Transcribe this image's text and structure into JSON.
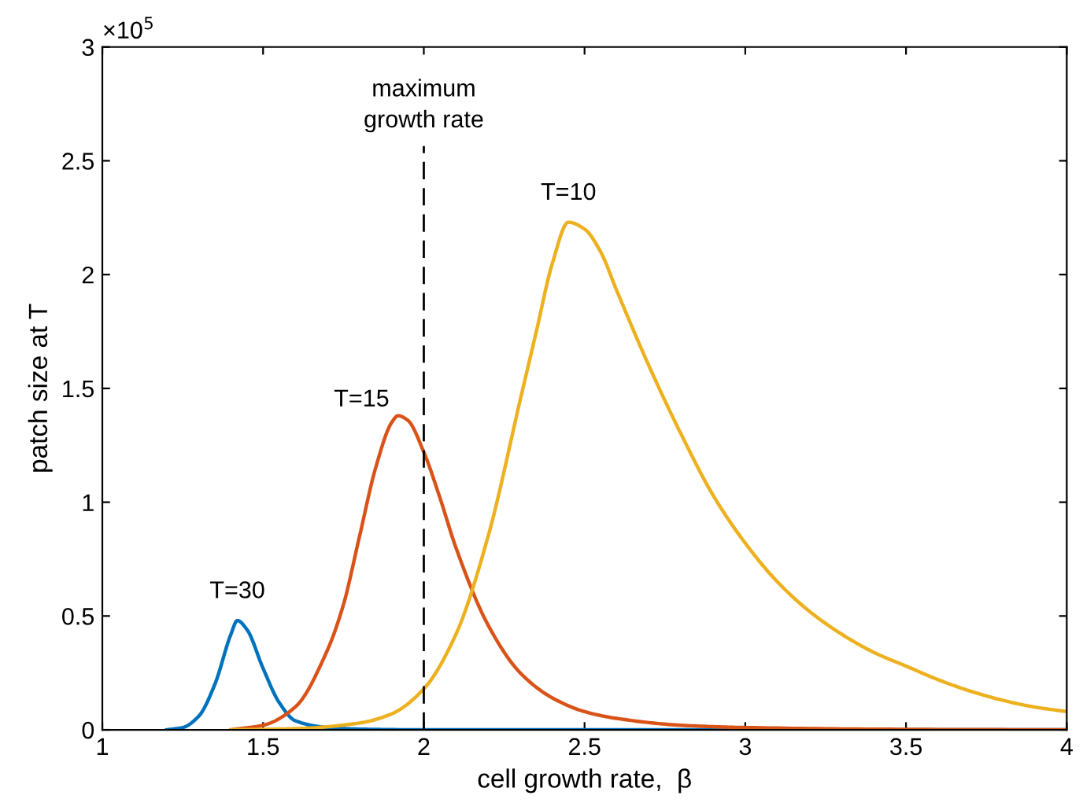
{
  "chart_data": {
    "type": "line",
    "xlabel": "cell growth rate,  β",
    "ylabel": "patch size at T",
    "xlim": [
      1,
      4
    ],
    "xticks": [
      1,
      1.5,
      2,
      2.5,
      3,
      3.5,
      4
    ],
    "ylim": [
      0,
      3
    ],
    "yticks": [
      0,
      0.5,
      1,
      1.5,
      2,
      2.5,
      3
    ],
    "grid": false,
    "legend": false,
    "marker": "none",
    "line_style": "solid",
    "series": [
      {
        "name": "T=30",
        "color": "#0072bd",
        "x": [
          1.2,
          1.25,
          1.3,
          1.35,
          1.4,
          1.42,
          1.45,
          1.5,
          1.55,
          1.6,
          1.7,
          1.8,
          2,
          3,
          4
        ],
        "values": [
          0,
          0.01,
          0.06,
          0.2,
          0.42,
          0.48,
          0.44,
          0.27,
          0.12,
          0.04,
          0.01,
          0.003,
          0,
          0,
          0
        ]
      },
      {
        "name": "T=15",
        "color": "#d95319",
        "x": [
          1.4,
          1.5,
          1.6,
          1.7,
          1.75,
          1.8,
          1.85,
          1.9,
          1.92,
          1.95,
          2,
          2.05,
          2.1,
          2.2,
          2.3,
          2.4,
          2.5,
          2.6,
          2.8,
          3,
          3.5,
          4
        ],
        "values": [
          0,
          0.02,
          0.1,
          0.35,
          0.55,
          0.85,
          1.15,
          1.35,
          1.38,
          1.36,
          1.22,
          1.02,
          0.8,
          0.46,
          0.25,
          0.14,
          0.08,
          0.05,
          0.02,
          0.01,
          0.002,
          0
        ]
      },
      {
        "name": "T=10",
        "color": "#edb120",
        "x": [
          1.4,
          1.6,
          1.8,
          1.9,
          2,
          2.1,
          2.2,
          2.3,
          2.35,
          2.4,
          2.45,
          2.5,
          2.55,
          2.6,
          2.7,
          2.8,
          2.9,
          3,
          3.1,
          3.2,
          3.3,
          3.4,
          3.5,
          3.6,
          3.7,
          3.8,
          3.9,
          4
        ],
        "values": [
          0,
          0.005,
          0.03,
          0.07,
          0.18,
          0.42,
          0.85,
          1.45,
          1.75,
          2.05,
          2.23,
          2.2,
          2.1,
          1.93,
          1.6,
          1.3,
          1.03,
          0.82,
          0.65,
          0.52,
          0.42,
          0.34,
          0.28,
          0.22,
          0.17,
          0.13,
          0.1,
          0.08
        ]
      }
    ],
    "ref_lines": [
      {
        "axis": "x",
        "value": 2,
        "label": "maximum\ngrowth rate",
        "color": "#000000",
        "line_style": "dashed"
      }
    ],
    "annotations": [
      "×10$^{5}$"
    ]
  }
}
